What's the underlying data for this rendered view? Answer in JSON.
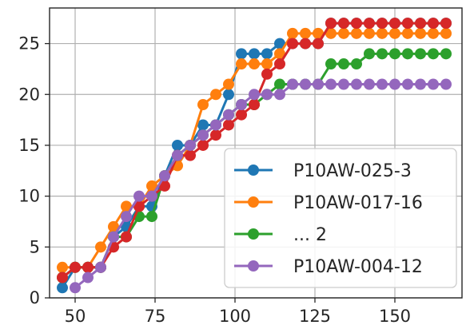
{
  "chart_data": {
    "type": "line",
    "title": "",
    "xlabel": "",
    "ylabel": "",
    "xlim": [
      42,
      171
    ],
    "ylim": [
      0,
      28.5
    ],
    "xticks": [
      50,
      75,
      100,
      125,
      150
    ],
    "yticks": [
      0,
      5,
      10,
      15,
      20,
      25
    ],
    "grid": true,
    "legend_position": "lower-right",
    "series": [
      {
        "name": "P10AW-025-3",
        "color": "#1f77b4",
        "x": [
          46,
          50,
          54,
          58,
          62,
          66,
          70,
          74,
          78,
          82,
          86,
          90,
          94,
          98,
          102,
          106,
          110,
          114,
          118,
          122,
          126,
          130,
          134,
          138,
          142,
          146,
          150,
          154,
          158,
          162,
          166
        ],
        "y": [
          1,
          3,
          3,
          3,
          6,
          7,
          9,
          9,
          12,
          15,
          15,
          17,
          17,
          20,
          24,
          24,
          24,
          25,
          25,
          25,
          25,
          27,
          27,
          27,
          27,
          27,
          27,
          27,
          27,
          27,
          27
        ]
      },
      {
        "name": "P10AW-017-16",
        "color": "#ff7f0e",
        "x": [
          46,
          50,
          54,
          58,
          62,
          66,
          70,
          74,
          78,
          82,
          86,
          90,
          94,
          98,
          102,
          106,
          110,
          114,
          118,
          122,
          126,
          130,
          134,
          138,
          142,
          146,
          150,
          154,
          158,
          162,
          166
        ],
        "y": [
          3,
          3,
          3,
          5,
          7,
          9,
          9,
          11,
          12,
          13,
          15,
          19,
          20,
          21,
          23,
          23,
          23,
          24,
          26,
          26,
          26,
          26,
          26,
          26,
          26,
          26,
          26,
          26,
          26,
          26,
          26
        ]
      },
      {
        "name": "... 2",
        "color": "#2ca02c",
        "x": [
          46,
          50,
          54,
          58,
          62,
          66,
          70,
          74,
          78,
          82,
          86,
          90,
          94,
          98,
          102,
          106,
          110,
          114,
          118,
          122,
          126,
          130,
          134,
          138,
          142,
          146,
          150,
          154,
          158,
          162,
          166
        ],
        "y": [
          2,
          3,
          3,
          3,
          6,
          6,
          8,
          8,
          12,
          14,
          15,
          16,
          17,
          18,
          19,
          19,
          20,
          21,
          21,
          21,
          21,
          23,
          23,
          23,
          24,
          24,
          24,
          24,
          24,
          24,
          24
        ]
      },
      {
        "name": "",
        "color": "#d62728",
        "x": [
          46,
          50,
          54,
          58,
          62,
          66,
          70,
          74,
          78,
          82,
          86,
          90,
          94,
          98,
          102,
          106,
          110,
          114,
          118,
          122,
          126,
          130,
          134,
          138,
          142,
          146,
          150,
          154,
          158,
          162,
          166
        ],
        "y": [
          2,
          3,
          3,
          3,
          5,
          6,
          9,
          10,
          11,
          14,
          14,
          15,
          16,
          17,
          18,
          19,
          22,
          23,
          25,
          25,
          25,
          27,
          27,
          27,
          27,
          27,
          27,
          27,
          27,
          27,
          27
        ]
      },
      {
        "name": "P10AW-004-12",
        "color": "#9467bd",
        "x": [
          50,
          54,
          58,
          62,
          66,
          70,
          74,
          78,
          82,
          86,
          90,
          94,
          98,
          102,
          106,
          110,
          114,
          118,
          122,
          126,
          130,
          134,
          138,
          142,
          146,
          150,
          154,
          158,
          162,
          166
        ],
        "y": [
          1,
          2,
          3,
          6,
          8,
          10,
          10,
          12,
          14,
          15,
          16,
          17,
          18,
          19,
          20,
          20,
          20,
          21,
          21,
          21,
          21,
          21,
          21,
          21,
          21,
          21,
          21,
          21,
          21,
          21
        ]
      }
    ],
    "legend": [
      "P10AW-025-3",
      "P10AW-017-16",
      "... 2",
      "P10AW-004-12"
    ]
  }
}
